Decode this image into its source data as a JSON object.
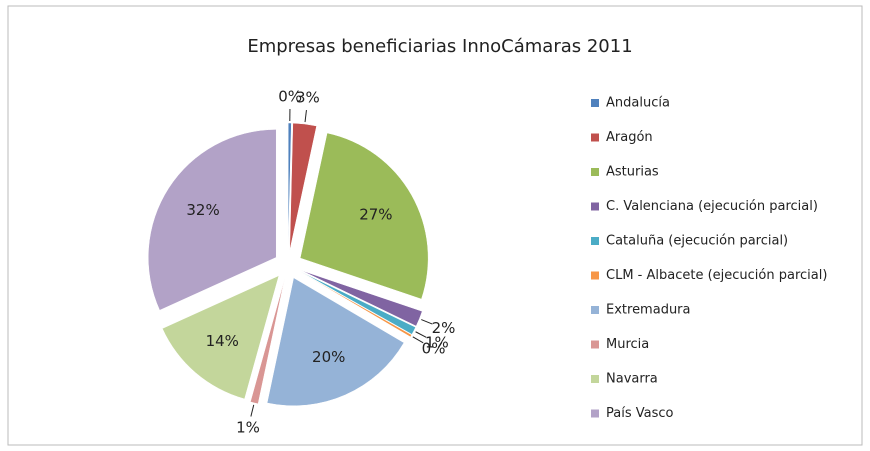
{
  "chart_data": {
    "type": "pie",
    "title": "Empresas beneficiarias InnoCámaras 2011",
    "categories": [
      "Andalucía",
      "Aragón",
      "Asturias",
      "C. Valenciana (ejecución parcial)",
      "Cataluña (ejecución parcial)",
      "CLM - Albacete (ejecución parcial)",
      "Extremadura",
      "Murcia",
      "Navarra",
      "País Vasco"
    ],
    "values": [
      0.4,
      3,
      27,
      2,
      1,
      0.3,
      20,
      1,
      14,
      32
    ],
    "value_labels": [
      "0%",
      "3%",
      "27%",
      "2%",
      "1%",
      "0%",
      "20%",
      "1%",
      "14%",
      "32%"
    ],
    "colors": [
      "#4f81bd",
      "#c0504d",
      "#9bbb59",
      "#8064a2",
      "#4bacc6",
      "#f79646",
      "#95b3d7",
      "#d99694",
      "#c3d69b",
      "#b2a2c7"
    ],
    "legend": "right"
  }
}
